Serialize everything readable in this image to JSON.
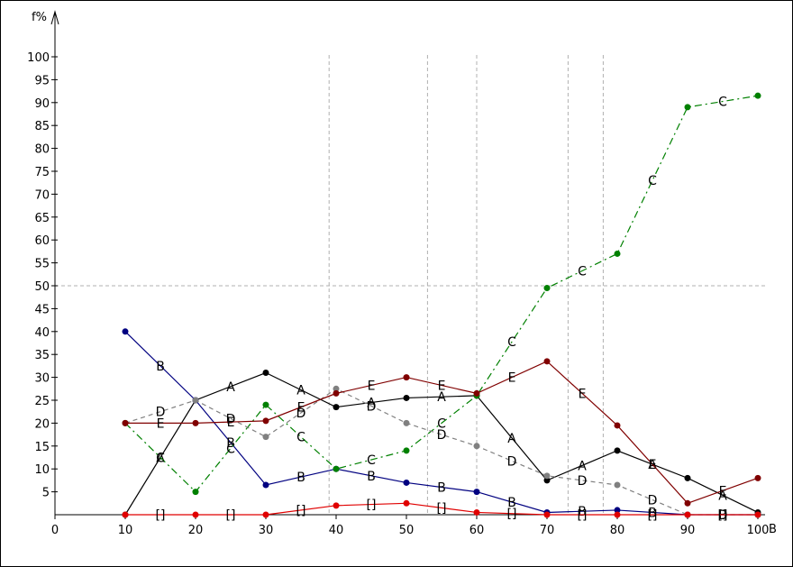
{
  "chart_data": {
    "type": "line",
    "ylabel": "f%",
    "xlabel": "B",
    "x_ticks": [
      0,
      10,
      20,
      30,
      40,
      50,
      60,
      70,
      80,
      90,
      100
    ],
    "y_ticks": [
      5,
      10,
      15,
      20,
      25,
      30,
      35,
      40,
      45,
      50,
      55,
      60,
      65,
      70,
      75,
      80,
      85,
      90,
      95,
      100
    ],
    "xlim": [
      0,
      100
    ],
    "ylim": [
      0,
      100
    ],
    "reference_lines": {
      "x": [
        39,
        53,
        60,
        73,
        78
      ],
      "y": [
        50
      ]
    },
    "series": [
      {
        "label": "A",
        "color": "#000000",
        "dash": "",
        "x": [
          10,
          20,
          30,
          40,
          50,
          60,
          70,
          80,
          90,
          100
        ],
        "y": [
          0,
          25,
          31,
          23.5,
          25.5,
          26,
          7.5,
          14,
          8,
          0.5
        ]
      },
      {
        "label": "B",
        "color": "#000080",
        "dash": "",
        "x": [
          10,
          20,
          30,
          40,
          50,
          60,
          70,
          80,
          90,
          100
        ],
        "y": [
          40,
          25,
          6.5,
          10,
          7,
          5,
          0.5,
          1,
          0,
          0
        ]
      },
      {
        "label": "C",
        "color": "#008000",
        "dash": "8,4,2,4",
        "x": [
          10,
          20,
          30,
          40,
          50,
          60,
          70,
          80,
          90,
          100
        ],
        "y": [
          20,
          5,
          24,
          10,
          14,
          26,
          49.5,
          57,
          89,
          91.5
        ]
      },
      {
        "label": "D",
        "color": "#808080",
        "dash": "5,4",
        "x": [
          10,
          20,
          30,
          40,
          50,
          60,
          70,
          80,
          90,
          100
        ],
        "y": [
          20,
          25,
          17,
          27.5,
          20,
          15,
          8.5,
          6.5,
          0,
          0
        ]
      },
      {
        "label": "E",
        "color": "#800000",
        "dash": "",
        "x": [
          10,
          20,
          30,
          40,
          50,
          60,
          70,
          80,
          90,
          100
        ],
        "y": [
          20,
          20,
          20.5,
          26.5,
          30,
          26.5,
          33.5,
          19.5,
          2.5,
          8
        ]
      },
      {
        "label": "[]",
        "color": "#e00000",
        "dash": "",
        "x": [
          10,
          20,
          30,
          40,
          50,
          60,
          70,
          80,
          90,
          100
        ],
        "y": [
          0,
          0,
          0,
          2,
          2.5,
          0.5,
          0,
          0,
          0,
          0
        ]
      }
    ]
  }
}
